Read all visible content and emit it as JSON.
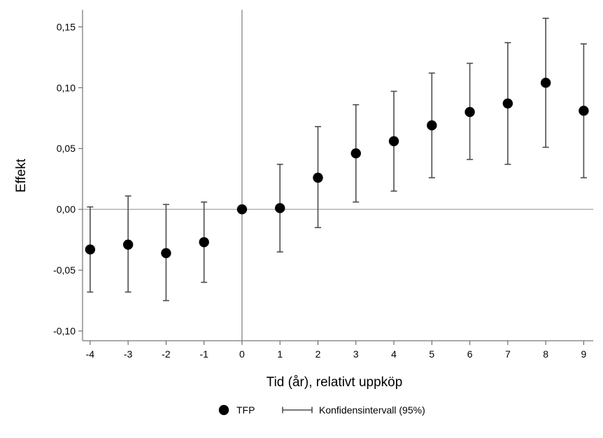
{
  "chart_data": {
    "type": "scatter",
    "title": "",
    "xlabel": "Tid (år), relativt uppköp",
    "ylabel": "Effekt",
    "x": [
      -4,
      -3,
      -2,
      -1,
      0,
      1,
      2,
      3,
      4,
      5,
      6,
      7,
      8,
      9
    ],
    "xlim": [
      -4.2,
      9.25
    ],
    "ylim": [
      -0.108,
      0.164
    ],
    "xticks": [
      -4,
      -3,
      -2,
      -1,
      0,
      1,
      2,
      3,
      4,
      5,
      6,
      7,
      8,
      9
    ],
    "xtick_labels": [
      "-4",
      "-3",
      "-2",
      "-1",
      "0",
      "1",
      "2",
      "3",
      "4",
      "5",
      "6",
      "7",
      "8",
      "9"
    ],
    "yticks": [
      -0.1,
      -0.05,
      0.0,
      0.05,
      0.1,
      0.15
    ],
    "ytick_labels": [
      "-0,10",
      "-0,05",
      "0,00",
      "0,05",
      "0,10",
      "0,15"
    ],
    "reference_lines": {
      "x": 0,
      "y": 0
    },
    "grid": false,
    "legend_position": "bottom-center",
    "series": [
      {
        "name": "TFP",
        "kind": "point",
        "color": "#000000",
        "values": [
          -0.033,
          -0.029,
          -0.036,
          -0.027,
          0.0,
          0.001,
          0.026,
          0.046,
          0.056,
          0.069,
          0.08,
          0.087,
          0.104,
          0.081
        ]
      },
      {
        "name": "Konfidensintervall (95%)",
        "kind": "errorbar",
        "color": "#4d4d4d",
        "lower": [
          -0.068,
          -0.068,
          -0.075,
          -0.06,
          0.0,
          -0.035,
          -0.015,
          0.006,
          0.015,
          0.026,
          0.041,
          0.037,
          0.051,
          0.026
        ],
        "upper": [
          0.002,
          0.011,
          0.004,
          0.006,
          0.0,
          0.037,
          0.068,
          0.086,
          0.097,
          0.112,
          0.12,
          0.137,
          0.157,
          0.136
        ]
      }
    ]
  }
}
